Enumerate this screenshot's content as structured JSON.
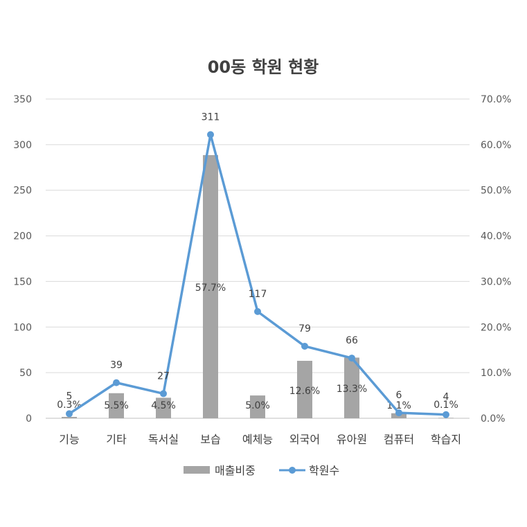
{
  "chart_data": {
    "type": "bar+line",
    "title": "00동 학원 현황",
    "categories": [
      "기능",
      "기타",
      "독서실",
      "보습",
      "예체능",
      "외국어",
      "유아원",
      "컴퓨터",
      "학습지"
    ],
    "series": [
      {
        "name": "매출비중",
        "type": "bar",
        "axis": "right",
        "color": "#a5a5a5",
        "values": [
          0.3,
          5.5,
          4.5,
          57.7,
          5.0,
          12.6,
          13.3,
          1.1,
          0.1
        ],
        "labels": [
          "0.3%",
          "5.5%",
          "4.5%",
          "57.7%",
          "5.0%",
          "12.6%",
          "13.3%",
          "1.1%",
          "0.1%"
        ]
      },
      {
        "name": "학원수",
        "type": "line",
        "axis": "left",
        "color": "#5b9bd5",
        "values": [
          5,
          39,
          27,
          311,
          117,
          79,
          66,
          6,
          4
        ],
        "labels": [
          "5",
          "39",
          "27",
          "311",
          "117",
          "79",
          "66",
          "6",
          "4"
        ]
      }
    ],
    "y_left": {
      "min": 0,
      "max": 350,
      "ticks": [
        "0",
        "50",
        "100",
        "150",
        "200",
        "250",
        "300",
        "350"
      ]
    },
    "y_right": {
      "min": 0,
      "max": 70,
      "ticks": [
        "0.0%",
        "10.0%",
        "20.0%",
        "30.0%",
        "40.0%",
        "50.0%",
        "60.0%",
        "70.0%"
      ]
    },
    "grid": true,
    "legend": "bottom"
  }
}
